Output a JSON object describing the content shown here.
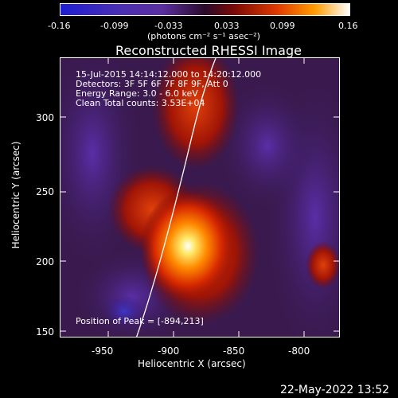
{
  "colorbar": {
    "ticks": [
      "-0.16",
      "-0.099",
      "-0.033",
      "0.033",
      "0.099",
      "0.16"
    ],
    "unit_label": "(photons cm⁻² s⁻¹ asec⁻²)"
  },
  "plot": {
    "title": "Reconstructed RHESSI Image",
    "info_lines": [
      "15-Jul-2015 14:14:12.000 to 14:20:12.000",
      "Detectors: 3F 5F 6F 7F 8F 9F, Att 0",
      "Energy Range: 3.0 - 6.0 keV",
      "Clean     Total counts: 3.53E+04"
    ],
    "peak_text": "Position of Peak = [-894,213]",
    "xlabel": "Heliocentric X (arcsec)",
    "ylabel": "Heliocentric Y (arcsec)",
    "xticks": [
      "-950",
      "-900",
      "-850",
      "-800"
    ],
    "yticks": [
      "300",
      "250",
      "200",
      "150"
    ]
  },
  "footer": {
    "date": "22-May-2022 13:52"
  },
  "colors": {
    "cmap_low": "#1e1ed2",
    "cmap_mid": "#2a0a2a",
    "cmap_high": "#ffffff"
  }
}
